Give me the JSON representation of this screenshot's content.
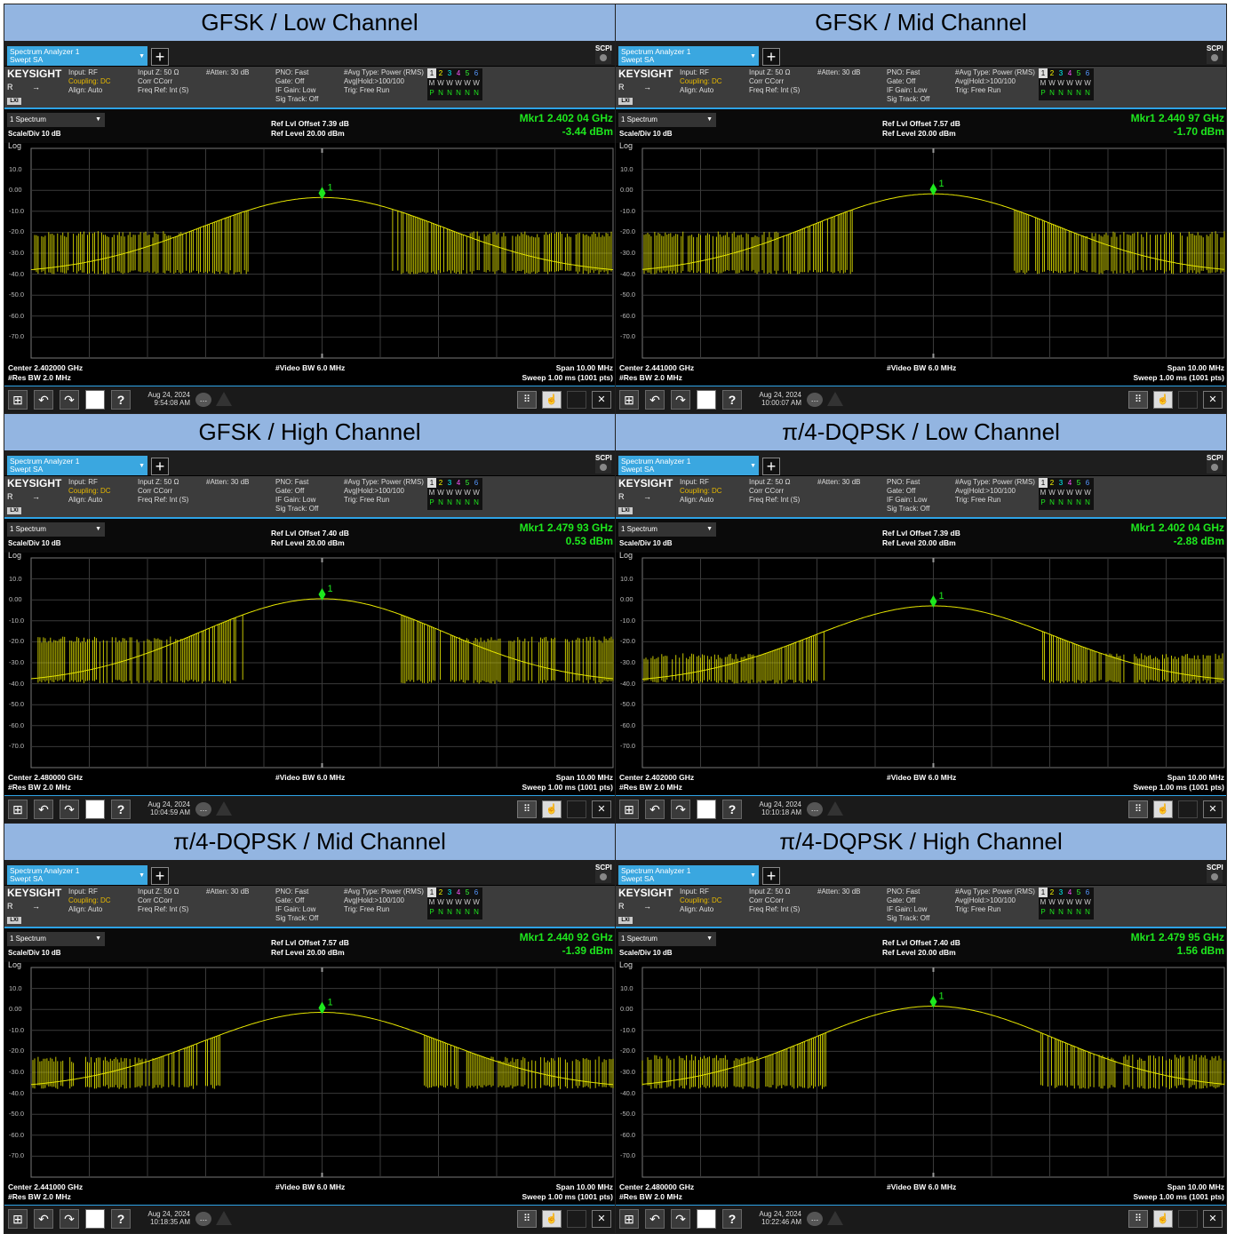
{
  "common": {
    "tab_line1": "Spectrum Analyzer 1",
    "tab_line2": "Swept SA",
    "add_label": "+",
    "scpi_label": "SCPI",
    "brand": "KEYSIGHT",
    "brand_r": "R",
    "lxi": "LXI",
    "input": "Input: RF",
    "coupling": "Coupling: DC",
    "align": "Align: Auto",
    "input_z": "Input Z: 50 Ω",
    "corr": "Corr CCorr",
    "freq_ref": "Freq Ref: Int (S)",
    "atten": "#Atten: 30 dB",
    "pno": "PNO: Fast",
    "gate": "Gate: Off",
    "if_gain": "IF Gain: Low",
    "sig_track": "Sig Track: Off",
    "avg_type": "#Avg Type: Power (RMS)",
    "avg_hold": "Avg|Hold:>100/100",
    "trig": "Trig: Free Run",
    "trace_nums": [
      "1",
      "2",
      "3",
      "4",
      "5",
      "6"
    ],
    "trace_modes": [
      "M",
      "W",
      "W",
      "W",
      "W",
      "W"
    ],
    "trace_dets": [
      "P",
      "N",
      "N",
      "N",
      "N",
      "N"
    ],
    "spectrum_btn": "1 Spectrum",
    "scale_div": "Scale/Div 10 dB",
    "ref_level": "Ref Level 20.00 dBm",
    "log_label": "Log",
    "y_ticks": [
      "10.0",
      "0.00",
      "-10.0",
      "-20.0",
      "-30.0",
      "-40.0",
      "-50.0",
      "-60.0",
      "-70.0"
    ],
    "res_bw": "#Res BW 2.0 MHz",
    "video_bw": "#Video BW 6.0 MHz",
    "span": "Span 10.00 MHz",
    "sweep": "Sweep 1.00 ms (1001 pts)",
    "marker_label": "1",
    "date_line1": "Aug 24, 2024",
    "colors": {
      "trace": "#e6e600",
      "marker": "#1ee81e",
      "title_bg": "#93b5e1",
      "accent": "#2ea3e6"
    }
  },
  "panels": [
    {
      "title": "GFSK / Low Channel",
      "ref_offset": "Ref Lvl Offset 7.39 dB",
      "mkr_freq": "Mkr1  2.402 04 GHz",
      "mkr_level": "-3.44 dBm",
      "center": "Center 2.402000 GHz",
      "time": "9:54:08 AM",
      "peak_dbm": -3.44,
      "floor_dbm": -40,
      "noise_top_dbm": -21
    },
    {
      "title": "GFSK / Mid Channel",
      "ref_offset": "Ref Lvl Offset 7.57 dB",
      "mkr_freq": "Mkr1  2.440 97 GHz",
      "mkr_level": "-1.70 dBm",
      "center": "Center 2.441000 GHz",
      "time": "10:00:07 AM",
      "peak_dbm": -1.7,
      "floor_dbm": -40,
      "noise_top_dbm": -21
    },
    {
      "title": "GFSK / High Channel",
      "ref_offset": "Ref Lvl Offset 7.40 dB",
      "mkr_freq": "Mkr1  2.479 93 GHz",
      "mkr_level": "0.53 dBm",
      "center": "Center 2.480000 GHz",
      "time": "10:04:59 AM",
      "peak_dbm": 0.53,
      "floor_dbm": -40,
      "noise_top_dbm": -19
    },
    {
      "title": "π/4-DQPSK / Low Channel",
      "ref_offset": "Ref Lvl Offset 7.39 dB",
      "mkr_freq": "Mkr1  2.402 04 GHz",
      "mkr_level": "-2.88 dBm",
      "center": "Center 2.402000 GHz",
      "time": "10:10:18 AM",
      "peak_dbm": -2.88,
      "floor_dbm": -40,
      "noise_top_dbm": -27
    },
    {
      "title": "π/4-DQPSK / Mid Channel",
      "ref_offset": "Ref Lvl Offset 7.57 dB",
      "mkr_freq": "Mkr1  2.440 92 GHz",
      "mkr_level": "-1.39 dBm",
      "center": "Center 2.441000 GHz",
      "time": "10:18:35 AM",
      "peak_dbm": -1.39,
      "floor_dbm": -38,
      "noise_top_dbm": -24
    },
    {
      "title": "π/4-DQPSK / High Channel",
      "ref_offset": "Ref Lvl Offset 7.40 dB",
      "mkr_freq": "Mkr1  2.479 95 GHz",
      "mkr_level": "1.56 dBm",
      "center": "Center 2.480000 GHz",
      "time": "10:22:46 AM",
      "peak_dbm": 1.56,
      "floor_dbm": -38,
      "noise_top_dbm": -23
    }
  ]
}
